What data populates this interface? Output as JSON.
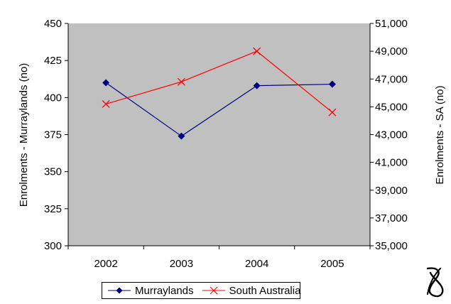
{
  "chart_data": {
    "type": "line",
    "categories": [
      "2002",
      "2003",
      "2004",
      "2005"
    ],
    "series": [
      {
        "name": "Murraylands",
        "axis": "left",
        "values": [
          410,
          374,
          408,
          409
        ],
        "color": "#000080",
        "marker": "diamond"
      },
      {
        "name": "South Australia",
        "axis": "right",
        "values": [
          45200,
          46800,
          49000,
          44600
        ],
        "color": "#ff0000",
        "marker": "x"
      }
    ],
    "ylabel_left": "Enrolments - Murraylands (no)",
    "ylabel_right": "Enrolments - SA (no)",
    "ylim_left": [
      300,
      450
    ],
    "ylim_right": [
      35000,
      51000
    ],
    "yticks_left": [
      "300",
      "325",
      "350",
      "375",
      "400",
      "425",
      "450"
    ],
    "yticks_right": [
      "35,000",
      "37,000",
      "39,000",
      "41,000",
      "43,000",
      "45,000",
      "47,000",
      "49,000",
      "51,000"
    ],
    "plot_background": "#c0c0c0",
    "grid": false,
    "legend_position": "bottom"
  }
}
